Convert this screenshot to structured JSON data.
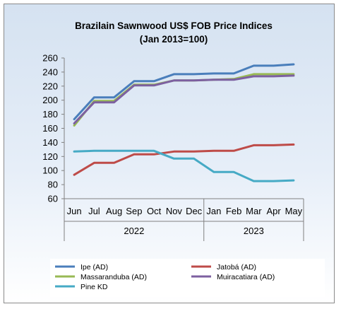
{
  "chart_data": {
    "type": "line",
    "title": "Brazilain Sawnwood US$ FOB Price Indices",
    "subtitle": "(Jan 2013=100)",
    "xlabel": "",
    "ylabel": "",
    "categories": [
      "Jun",
      "Jul",
      "Aug",
      "Sep",
      "Oct",
      "Nov",
      "Dec",
      "Jan",
      "Feb",
      "Mar",
      "Apr",
      "May"
    ],
    "year_groups": [
      {
        "label": "2022",
        "count": 7
      },
      {
        "label": "2023",
        "count": 5
      }
    ],
    "ylim": [
      60,
      260
    ],
    "yticks": [
      60,
      80,
      100,
      120,
      140,
      160,
      180,
      200,
      220,
      240,
      260
    ],
    "grid": false,
    "legend_position": "bottom",
    "series": [
      {
        "name": "Ipe (AD)",
        "color": "#4a7ebb",
        "values": [
          173,
          204,
          204,
          227,
          227,
          237,
          237,
          238,
          238,
          249,
          249,
          251
        ]
      },
      {
        "name": "Jatobá (AD)",
        "color": "#be4b48",
        "values": [
          94,
          111,
          111,
          123,
          123,
          127,
          127,
          128,
          128,
          136,
          136,
          137
        ]
      },
      {
        "name": "Massaranduba (AD)",
        "color": "#98b954",
        "values": [
          164,
          199,
          199,
          222,
          222,
          228,
          228,
          229,
          230,
          237,
          237,
          237
        ]
      },
      {
        "name": "Muiracatiara (AD)",
        "color": "#7d60a0",
        "values": [
          167,
          197,
          197,
          221,
          221,
          228,
          228,
          229,
          229,
          234,
          234,
          235
        ]
      },
      {
        "name": "Pine KD",
        "color": "#46aac5",
        "values": [
          127,
          128,
          128,
          128,
          128,
          117,
          117,
          98,
          98,
          85,
          85,
          86
        ]
      }
    ]
  }
}
